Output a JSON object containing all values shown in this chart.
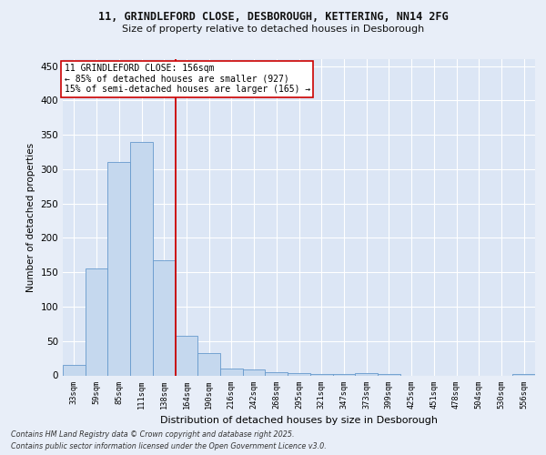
{
  "title_line1": "11, GRINDLEFORD CLOSE, DESBOROUGH, KETTERING, NN14 2FG",
  "title_line2": "Size of property relative to detached houses in Desborough",
  "xlabel": "Distribution of detached houses by size in Desborough",
  "ylabel": "Number of detached properties",
  "categories": [
    "33sqm",
    "59sqm",
    "85sqm",
    "111sqm",
    "138sqm",
    "164sqm",
    "190sqm",
    "216sqm",
    "242sqm",
    "268sqm",
    "295sqm",
    "321sqm",
    "347sqm",
    "373sqm",
    "399sqm",
    "425sqm",
    "451sqm",
    "478sqm",
    "504sqm",
    "530sqm",
    "556sqm"
  ],
  "values": [
    15,
    156,
    310,
    340,
    167,
    57,
    33,
    10,
    8,
    5,
    3,
    2,
    2,
    3,
    2,
    0,
    0,
    0,
    0,
    0,
    2
  ],
  "bar_color": "#c5d8ee",
  "bar_edge_color": "#6699cc",
  "vline_pos": 4.5,
  "annotation_line1": "11 GRINDLEFORD CLOSE: 156sqm",
  "annotation_line2": "← 85% of detached houses are smaller (927)",
  "annotation_line3": "15% of semi-detached houses are larger (165) →",
  "ylim": [
    0,
    460
  ],
  "yticks": [
    0,
    50,
    100,
    150,
    200,
    250,
    300,
    350,
    400,
    450
  ],
  "footer_line1": "Contains HM Land Registry data © Crown copyright and database right 2025.",
  "footer_line2": "Contains public sector information licensed under the Open Government Licence v3.0.",
  "bg_color": "#e8eef8",
  "plot_bg_color": "#dce6f5",
  "grid_color": "#ffffff",
  "vline_color": "#cc0000",
  "annotation_box_facecolor": "#ffffff",
  "annotation_box_edgecolor": "#cc0000"
}
